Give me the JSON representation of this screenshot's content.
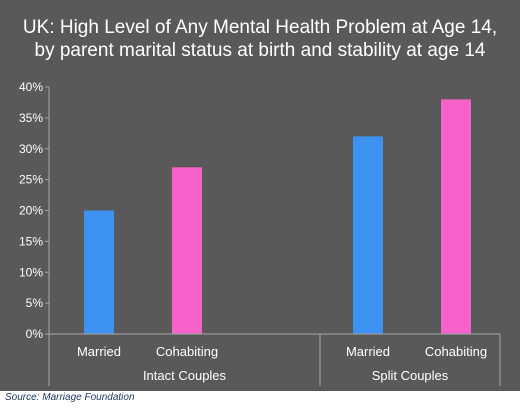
{
  "chart_data": {
    "type": "bar",
    "title_lines": [
      "UK: High Level of Any Mental Health Problem at Age 14,",
      "by parent marital status at birth and stability at age 14"
    ],
    "groups": [
      {
        "name": "Intact Couples",
        "bars": [
          {
            "label": "Married",
            "value": 20,
            "color": "#3d93f2"
          },
          {
            "label": "Cohabiting",
            "value": 27,
            "color": "#f562c9"
          }
        ]
      },
      {
        "name": "Split Couples",
        "bars": [
          {
            "label": "Married",
            "value": 32,
            "color": "#3d93f2"
          },
          {
            "label": "Cohabiting",
            "value": 38,
            "color": "#f562c9"
          }
        ]
      }
    ],
    "y_ticks": [
      "0%",
      "5%",
      "10%",
      "15%",
      "20%",
      "25%",
      "30%",
      "35%",
      "40%"
    ],
    "ylim": [
      0,
      40
    ],
    "grid": false,
    "legend": "none",
    "background": "#595959",
    "text_color": "#ffffff",
    "axis_color": "#a6a6a6"
  },
  "source": "Source: Marriage Foundation"
}
